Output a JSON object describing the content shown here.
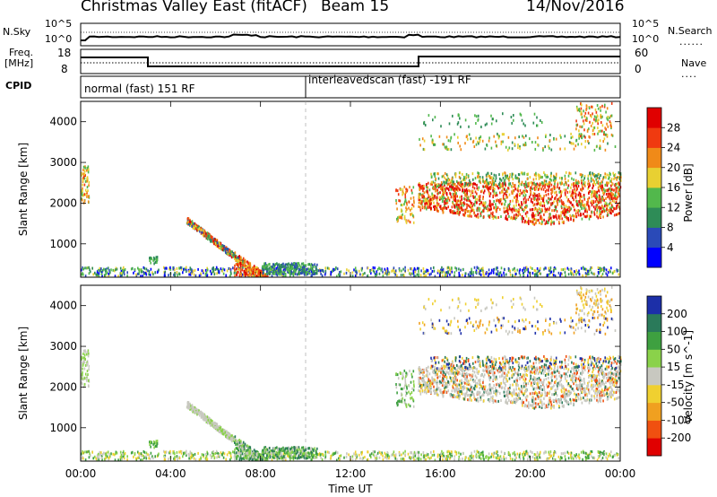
{
  "header": {
    "title": "Christmas Valley East (fitACF)",
    "beam": "Beam 15",
    "date": "14/Nov/2016"
  },
  "strips": {
    "nsky_label": "N.Sky",
    "nsearch_label": "N.Search",
    "noise_ticks": [
      "10^5",
      "10^0"
    ],
    "freq_label_line1": "Freq.",
    "freq_label_line2": "[MHz]",
    "freq_ticks": [
      "18",
      "8"
    ],
    "nave_label": "Nave",
    "nave_ticks": [
      "60",
      "0"
    ],
    "cpid_label": "CPID",
    "cpid_segments": [
      "normal (fast) 151 RF",
      "interleavedscan (fast) -191 RF"
    ]
  },
  "chart_data": [
    {
      "type": "heatmap",
      "title": "",
      "ylabel": "Slant Range [km]",
      "yticks": [
        "1000",
        "2000",
        "3000",
        "4000"
      ],
      "ylim": [
        180,
        4500
      ],
      "colorbar_label": "Power [dB]",
      "colorbar_ticks": [
        "4",
        "8",
        "12",
        "16",
        "20",
        "24",
        "28"
      ],
      "colors": [
        "#0000ff",
        "#2a4ab8",
        "#2e8c57",
        "#52b84c",
        "#e8d032",
        "#f08a18",
        "#f03a10",
        "#e00000"
      ]
    },
    {
      "type": "heatmap",
      "title": "",
      "ylabel": "Slant Range [km]",
      "yticks": [
        "1000",
        "2000",
        "3000",
        "4000"
      ],
      "ylim": [
        180,
        4500
      ],
      "colorbar_label": "Velocity [m s^-1]",
      "colorbar_ticks": [
        "200",
        "100",
        "50",
        "15",
        "-15",
        "-50",
        "-100",
        "-200"
      ],
      "colors": [
        "#1c2fa8",
        "#2a7a5a",
        "#3ea040",
        "#8ad24a",
        "#c8c8c0",
        "#f0d030",
        "#f0a020",
        "#f05010",
        "#e00000"
      ]
    }
  ],
  "xaxis": {
    "label": "Time UT",
    "ticks": [
      "00:00",
      "04:00",
      "08:00",
      "12:00",
      "16:00",
      "20:00",
      "00:00"
    ]
  }
}
